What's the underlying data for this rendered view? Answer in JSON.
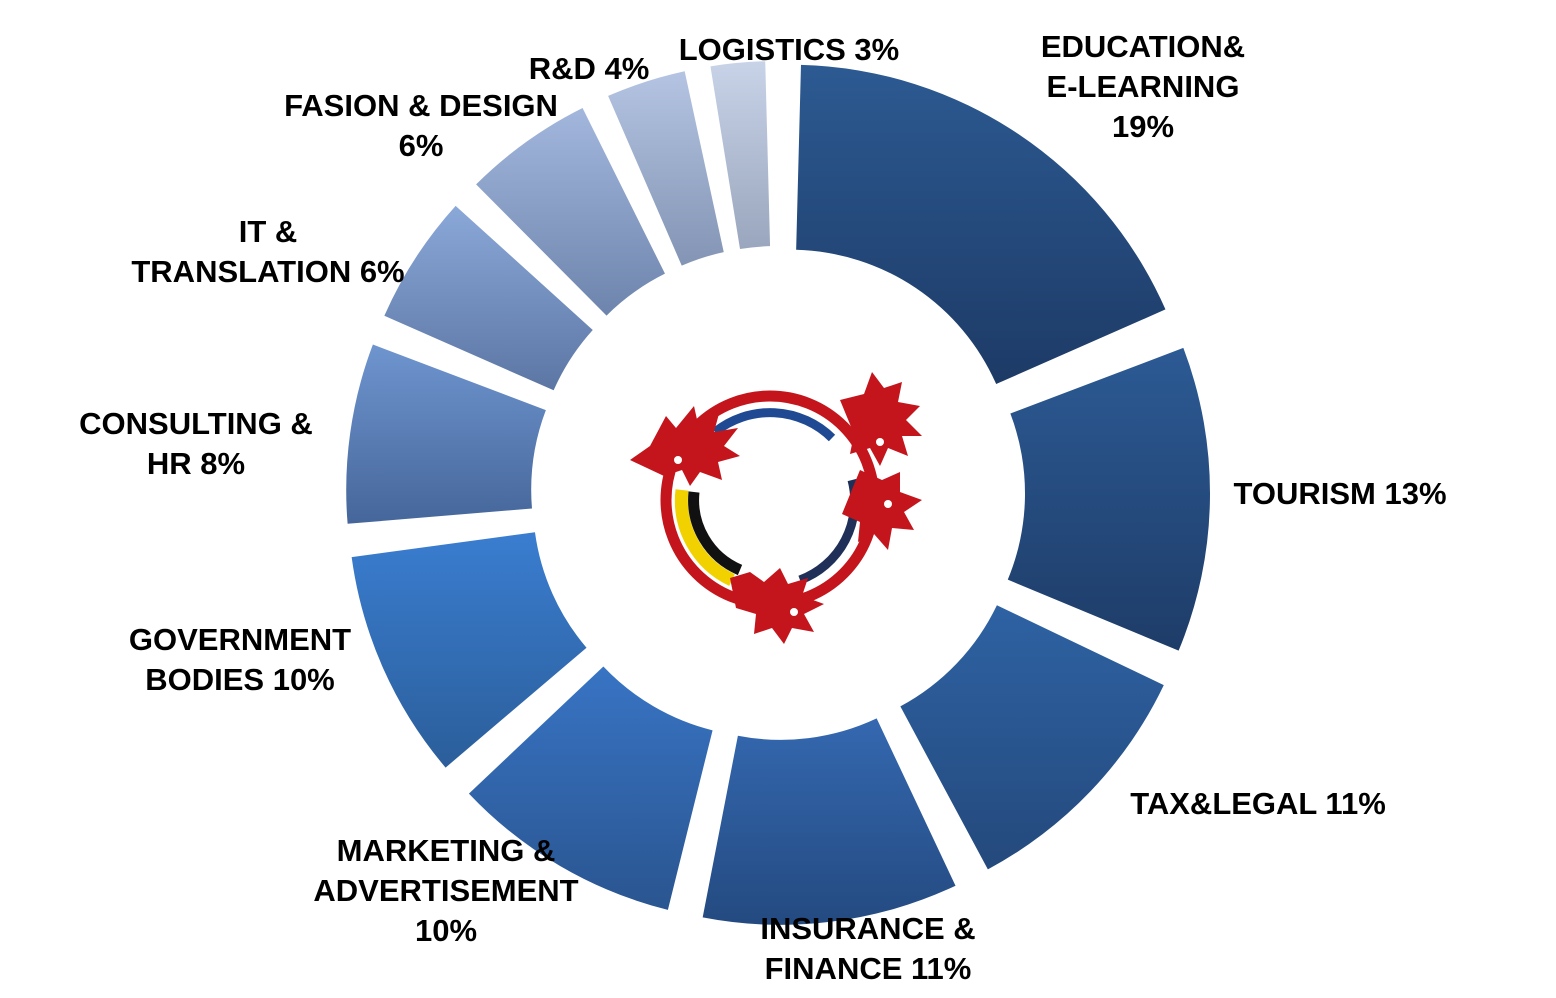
{
  "chart_data": {
    "type": "pie",
    "style": "exploded-donut",
    "categories": [
      "EDUCATION& E-LEARNING",
      "TOURISM",
      "TAX&LEGAL",
      "INSURANCE & FINANCE",
      "MARKETING & ADVERTISEMENT",
      "GOVERNMENT BODIES",
      "CONSULTING & HR",
      "IT & TRANSLATION",
      "FASION & DESIGN",
      "R&D",
      "LOGISTICS"
    ],
    "values": [
      19,
      13,
      11,
      11,
      10,
      10,
      8,
      6,
      6,
      4,
      3
    ],
    "unit": "%",
    "labels": [
      [
        "EDUCATION&",
        "E-LEARNING",
        "19%"
      ],
      [
        "TOURISM 13%"
      ],
      [
        "TAX&LEGAL 11%"
      ],
      [
        "INSURANCE  &",
        "FINANCE 11%"
      ],
      [
        "MARKETING &",
        "ADVERTISEMENT",
        "10%"
      ],
      [
        "GOVERNMENT",
        "BODIES 10%"
      ],
      [
        "CONSULTING &",
        "HR  8%"
      ],
      [
        "IT &",
        "TRANSLATION 6%"
      ],
      [
        "FASION & DESIGN",
        "6%"
      ],
      [
        "R&D 4%"
      ],
      [
        "LOGISTICS 3%"
      ]
    ],
    "colors": [
      [
        "#2c5a92",
        "#1d3a66"
      ],
      [
        "#2c5a94",
        "#1e3c68"
      ],
      [
        "#2e62a3",
        "#24497c"
      ],
      [
        "#3468b0",
        "#244a80"
      ],
      [
        "#3874c4",
        "#2a5590"
      ],
      [
        "#3a7dd0",
        "#2b5e9a"
      ],
      [
        "#6f95cf",
        "#45669a"
      ],
      [
        "#8aa8d8",
        "#5c76a4"
      ],
      [
        "#a3b7dd",
        "#6d84ac"
      ],
      [
        "#b4c4e2",
        "#8394b4"
      ],
      [
        "#c8d3e8",
        "#9aa6bd"
      ]
    ],
    "legend": "none",
    "grid": false
  },
  "logo": {
    "name": "dragon-ring-logo"
  }
}
